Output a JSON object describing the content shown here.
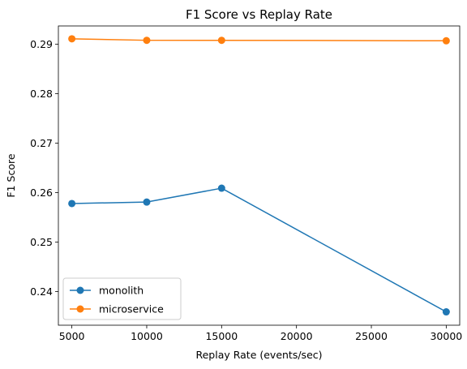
{
  "chart_data": {
    "type": "line",
    "title": "F1 Score vs Replay Rate",
    "xlabel": "Replay Rate (events/sec)",
    "ylabel": "F1 Score",
    "xlim": [
      4100,
      30900
    ],
    "ylim": [
      0.2332,
      0.2937
    ],
    "xticks": [
      5000,
      10000,
      15000,
      20000,
      25000,
      30000
    ],
    "yticks": [
      0.24,
      0.25,
      0.26,
      0.27,
      0.28,
      0.29
    ],
    "xtick_labels": [
      "5000",
      "10000",
      "15000",
      "20000",
      "25000",
      "30000"
    ],
    "ytick_labels": [
      "0.24",
      "0.25",
      "0.26",
      "0.27",
      "0.28",
      "0.29"
    ],
    "grid": false,
    "legend_position": "lower-left",
    "series": [
      {
        "name": "monolith",
        "color": "#1f77b4",
        "x": [
          5000,
          10000,
          15000,
          30000
        ],
        "y": [
          0.2578,
          0.2581,
          0.2609,
          0.2359
        ]
      },
      {
        "name": "microservice",
        "color": "#ff7f0e",
        "x": [
          5000,
          10000,
          15000,
          30000
        ],
        "y": [
          0.2911,
          0.2908,
          0.2908,
          0.2907
        ]
      }
    ]
  }
}
